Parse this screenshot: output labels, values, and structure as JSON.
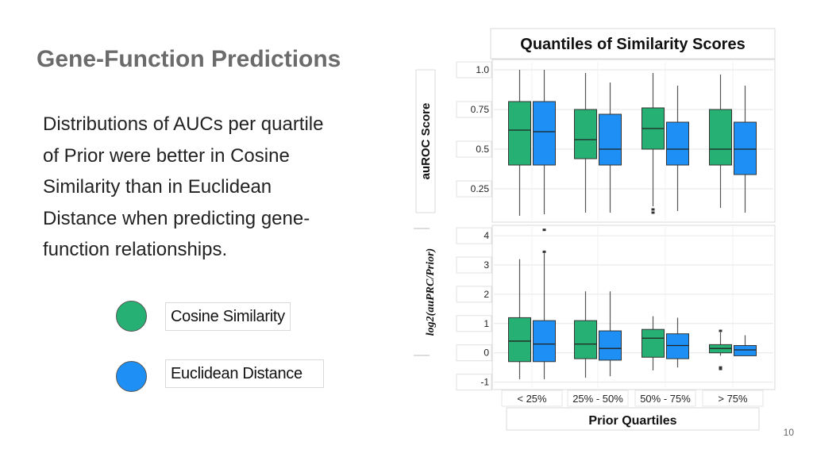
{
  "slide": {
    "title": "Gene-Function Predictions",
    "body_lines": [
      "Distributions of AUCs per quartile",
      "of Prior were better in Cosine",
      "Similarity than in Euclidean",
      "Distance when predicting gene-",
      "function relationships."
    ],
    "legend": [
      {
        "label": "Cosine Similarity",
        "color": "#27b073"
      },
      {
        "label": "Euclidean Distance",
        "color": "#1e90f5"
      }
    ],
    "page_number": "10"
  },
  "chart_data": {
    "type": "box",
    "title": "Quantiles of Similarity Scores",
    "xlabel": "Prior Quartiles",
    "categories": [
      "< 25%",
      "25% - 50%",
      "50% - 75%",
      "> 75%"
    ],
    "series_colors": [
      "#27b073",
      "#1e90f5"
    ],
    "panels": [
      {
        "ylabel": "auROC Score",
        "ylim": [
          0.05,
          1.05
        ],
        "yticks": [
          0.25,
          0.5,
          0.75,
          1.0
        ],
        "ytick_labels": [
          "0.25",
          "0.5",
          "0.75",
          "1.0"
        ],
        "series": [
          {
            "boxes": [
              {
                "min": 0.08,
                "q1": 0.4,
                "median": 0.62,
                "q3": 0.8,
                "max": 1.0,
                "outliers": []
              },
              {
                "min": 0.1,
                "q1": 0.44,
                "median": 0.56,
                "q3": 0.75,
                "max": 0.98,
                "outliers": []
              },
              {
                "min": 0.14,
                "q1": 0.5,
                "median": 0.63,
                "q3": 0.76,
                "max": 0.98,
                "outliers": [
                  0.1,
                  0.12
                ]
              },
              {
                "min": 0.13,
                "q1": 0.4,
                "median": 0.5,
                "q3": 0.75,
                "max": 0.97,
                "outliers": []
              }
            ]
          },
          {
            "boxes": [
              {
                "min": 0.09,
                "q1": 0.4,
                "median": 0.61,
                "q3": 0.8,
                "max": 1.0,
                "outliers": []
              },
              {
                "min": 0.1,
                "q1": 0.4,
                "median": 0.5,
                "q3": 0.72,
                "max": 0.92,
                "outliers": []
              },
              {
                "min": 0.11,
                "q1": 0.4,
                "median": 0.5,
                "q3": 0.67,
                "max": 0.9,
                "outliers": []
              },
              {
                "min": 0.1,
                "q1": 0.34,
                "median": 0.5,
                "q3": 0.67,
                "max": 0.9,
                "outliers": []
              }
            ]
          }
        ]
      },
      {
        "ylabel": "log2(auPRC/Prior)",
        "ylim": [
          -1.2,
          4.3
        ],
        "yticks": [
          -1,
          0,
          1,
          2,
          3,
          4
        ],
        "ytick_labels": [
          "-1",
          "0",
          "1",
          "2",
          "3",
          "4"
        ],
        "series": [
          {
            "boxes": [
              {
                "min": -0.9,
                "q1": -0.3,
                "median": 0.4,
                "q3": 1.2,
                "max": 3.2,
                "outliers": []
              },
              {
                "min": -0.85,
                "q1": -0.2,
                "median": 0.3,
                "q3": 1.1,
                "max": 2.1,
                "outliers": []
              },
              {
                "min": -0.6,
                "q1": -0.15,
                "median": 0.5,
                "q3": 0.8,
                "max": 1.25,
                "outliers": []
              },
              {
                "min": -0.1,
                "q1": 0.0,
                "median": 0.15,
                "q3": 0.28,
                "max": 0.7,
                "outliers": [
                  0.75,
                  -0.5,
                  -0.55
                ]
              }
            ]
          },
          {
            "boxes": [
              {
                "min": -0.9,
                "q1": -0.3,
                "median": 0.3,
                "q3": 1.1,
                "max": 3.4,
                "outliers": [
                  3.45,
                  4.2
                ]
              },
              {
                "min": -0.8,
                "q1": -0.25,
                "median": 0.15,
                "q3": 0.75,
                "max": 2.1,
                "outliers": []
              },
              {
                "min": -0.5,
                "q1": -0.2,
                "median": 0.25,
                "q3": 0.65,
                "max": 1.2,
                "outliers": []
              },
              {
                "min": -0.1,
                "q1": -0.1,
                "median": 0.1,
                "q3": 0.25,
                "max": 0.6,
                "outliers": []
              }
            ]
          }
        ]
      }
    ]
  }
}
